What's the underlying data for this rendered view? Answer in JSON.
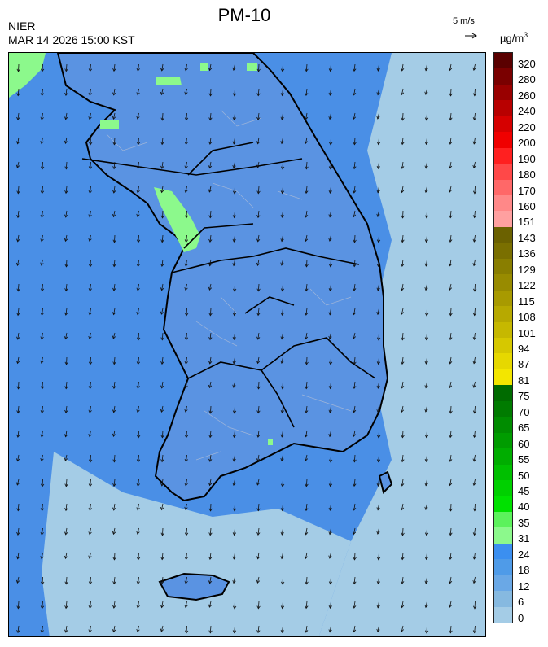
{
  "header": {
    "title": "PM-10",
    "agency": "NIER",
    "datetime": "MAR 14 2026 15:00 KST",
    "wind_scale": "5 m/s",
    "unit": "µg/m",
    "unit_exp": "3"
  },
  "legend": {
    "ticks": [
      "320",
      "280",
      "260",
      "240",
      "220",
      "200",
      "190",
      "180",
      "170",
      "160",
      "151",
      "143",
      "136",
      "129",
      "122",
      "115",
      "108",
      "101",
      "94",
      "87",
      "81",
      "75",
      "70",
      "65",
      "60",
      "55",
      "50",
      "45",
      "40",
      "35",
      "31",
      "24",
      "18",
      "12",
      "6",
      "0"
    ],
    "colors": [
      "#5a0000",
      "#7a0000",
      "#990000",
      "#b80000",
      "#d60000",
      "#f00000",
      "#ff2020",
      "#ff4848",
      "#ff6868",
      "#ff8888",
      "#ffa0a0",
      "#6b6100",
      "#7a6f00",
      "#897e00",
      "#988b00",
      "#a89a00",
      "#b7a900",
      "#c6b800",
      "#d6c800",
      "#e6d800",
      "#f3e600",
      "#006b00",
      "#007b00",
      "#008c00",
      "#009c00",
      "#00ad00",
      "#00bf00",
      "#00d000",
      "#00e100",
      "#5cf25c",
      "#8cf98c",
      "#3b8ff0",
      "#4f9be8",
      "#6aa8e6",
      "#86b9e0",
      "#a4cce6"
    ]
  },
  "map": {
    "background_color": "#4a8fe6",
    "land_color": "#5a93e2",
    "coast_color": "#000000",
    "boundary_color": "#9fb5d9",
    "high_color": "#8cf98c",
    "low_color": "#a4cce6"
  }
}
